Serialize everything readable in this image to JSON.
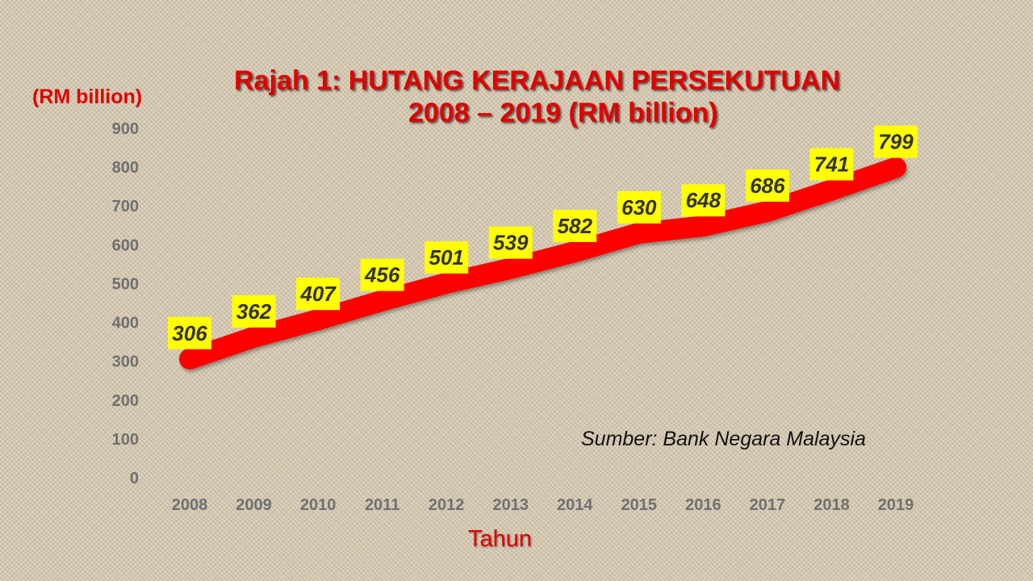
{
  "chart_data": {
    "type": "line",
    "title_line1": "Rajah 1: HUTANG KERAJAAN PERSEKUTUAN",
    "title_line2": "2008 – 2019 (RM billion)",
    "ylabel": "(RM billion)",
    "xlabel": "Tahun",
    "source": "Sumber: Bank Negara Malaysia",
    "ylim": [
      0,
      900
    ],
    "yticks": [
      0,
      100,
      200,
      300,
      400,
      500,
      600,
      700,
      800,
      900
    ],
    "categories": [
      "2008",
      "2009",
      "2010",
      "2011",
      "2012",
      "2013",
      "2014",
      "2015",
      "2016",
      "2017",
      "2018",
      "2019"
    ],
    "series": [
      {
        "values": [
          306,
          362,
          407,
          456,
          501,
          539,
          582,
          630,
          648,
          686,
          741,
          799
        ]
      }
    ],
    "grid": false,
    "legend": "none",
    "line_color": "#ff0000",
    "label_bg_color": "#ffff00"
  }
}
